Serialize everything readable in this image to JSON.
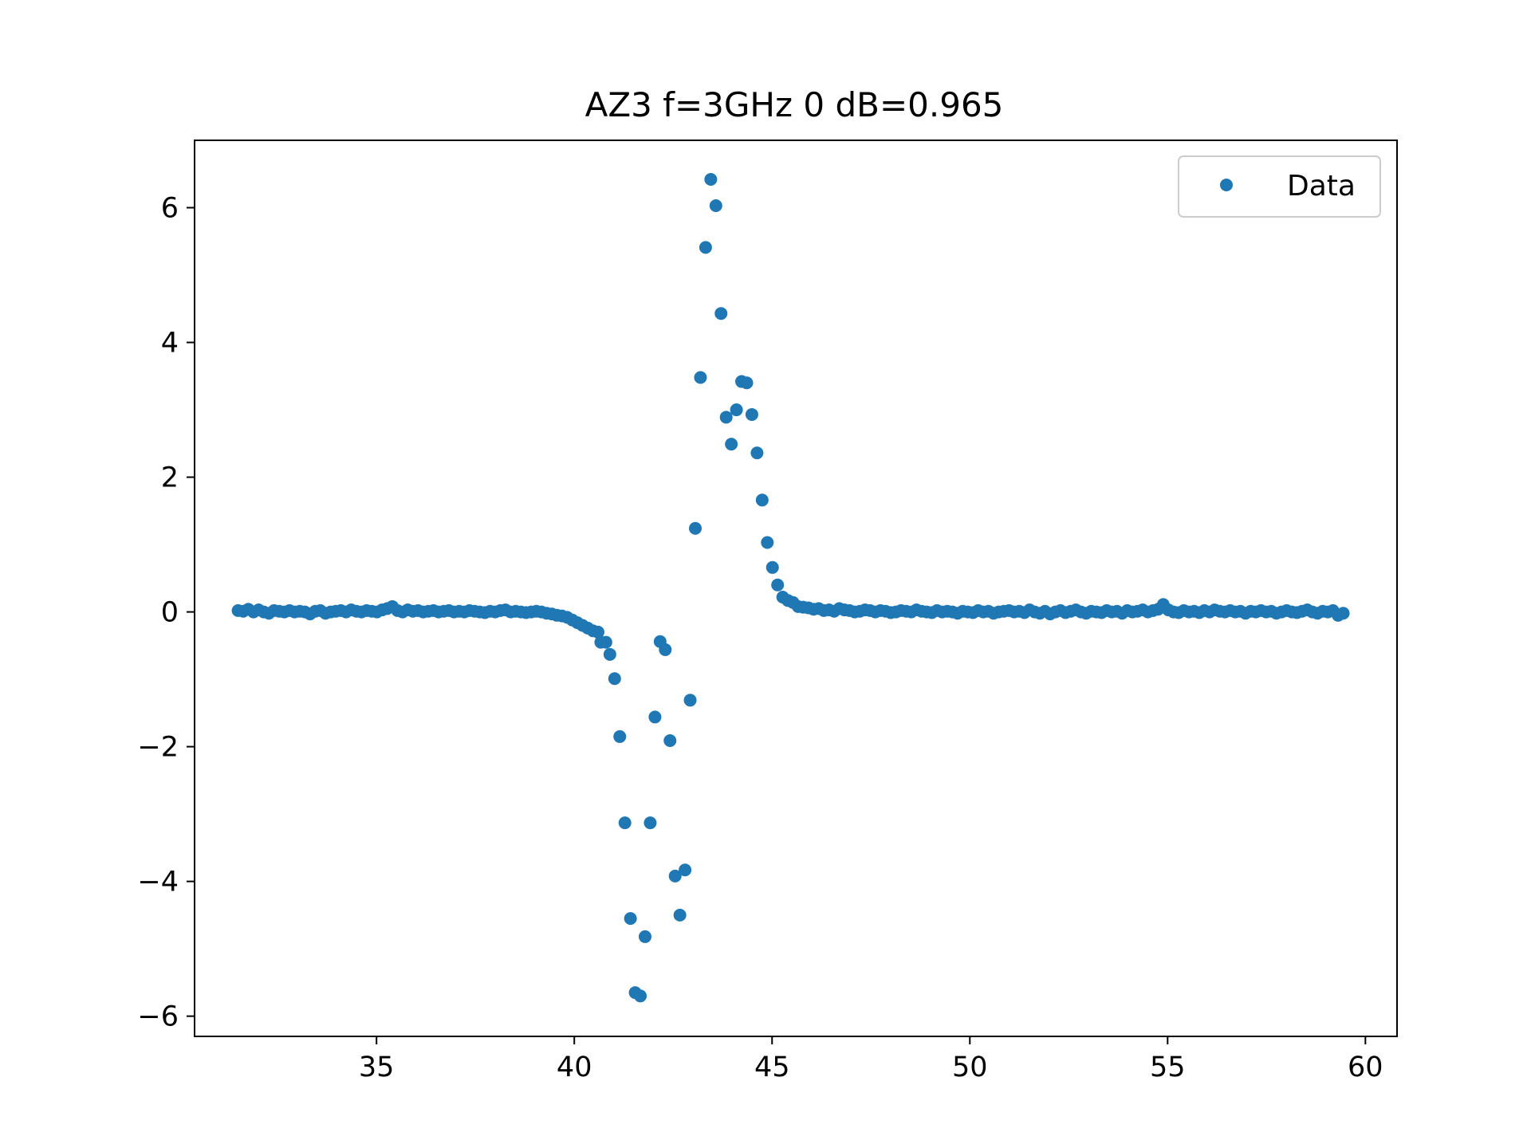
{
  "chart_data": {
    "type": "scatter",
    "title": "AZ3 f=3GHz 0 dB=0.965",
    "xlabel": "",
    "ylabel": "",
    "xlim": [
      30.4,
      60.8
    ],
    "ylim": [
      -6.3,
      7.0
    ],
    "xticks": [
      35,
      40,
      45,
      50,
      55,
      60
    ],
    "xtick_labels": [
      "35",
      "40",
      "45",
      "50",
      "55",
      "60"
    ],
    "yticks": [
      -6,
      -4,
      -2,
      0,
      2,
      4,
      6
    ],
    "ytick_labels": [
      "−6",
      "−4",
      "−2",
      "0",
      "2",
      "4",
      "6"
    ],
    "grid": false,
    "legend": {
      "position": "top-right",
      "entries": [
        "Data"
      ]
    },
    "colors": {
      "series": "#1f77b4",
      "axes": "#000000",
      "legend_border": "#cccccc"
    },
    "series": [
      {
        "name": "Data",
        "marker": "circle",
        "points": [
          [
            31.5,
            0.02
          ],
          [
            31.63,
            0.01
          ],
          [
            31.76,
            0.04
          ],
          [
            31.89,
            0.0
          ],
          [
            32.02,
            0.03
          ],
          [
            32.15,
            0.0
          ],
          [
            32.28,
            -0.02
          ],
          [
            32.41,
            0.02
          ],
          [
            32.54,
            0.01
          ],
          [
            32.67,
            0.0
          ],
          [
            32.8,
            0.02
          ],
          [
            32.93,
            0.0
          ],
          [
            33.06,
            0.01
          ],
          [
            33.19,
            0.0
          ],
          [
            33.32,
            -0.03
          ],
          [
            33.45,
            0.01
          ],
          [
            33.58,
            0.02
          ],
          [
            33.71,
            -0.02
          ],
          [
            33.84,
            0.0
          ],
          [
            33.97,
            0.01
          ],
          [
            34.1,
            0.02
          ],
          [
            34.23,
            0.0
          ],
          [
            34.36,
            0.03
          ],
          [
            34.49,
            0.01
          ],
          [
            34.62,
            0.0
          ],
          [
            34.75,
            0.02
          ],
          [
            34.88,
            0.01
          ],
          [
            35.01,
            0.0
          ],
          [
            35.14,
            0.03
          ],
          [
            35.27,
            0.05
          ],
          [
            35.4,
            0.08
          ],
          [
            35.53,
            0.02
          ],
          [
            35.66,
            0.0
          ],
          [
            35.79,
            0.03
          ],
          [
            35.92,
            0.01
          ],
          [
            36.05,
            0.02
          ],
          [
            36.18,
            0.0
          ],
          [
            36.31,
            0.01
          ],
          [
            36.44,
            0.02
          ],
          [
            36.57,
            0.0
          ],
          [
            36.7,
            0.01
          ],
          [
            36.83,
            0.02
          ],
          [
            36.96,
            0.0
          ],
          [
            37.09,
            0.01
          ],
          [
            37.22,
            0.0
          ],
          [
            37.35,
            0.02
          ],
          [
            37.48,
            0.01
          ],
          [
            37.61,
            0.0
          ],
          [
            37.74,
            -0.01
          ],
          [
            37.87,
            0.01
          ],
          [
            38.0,
            0.0
          ],
          [
            38.13,
            0.02
          ],
          [
            38.26,
            0.03
          ],
          [
            38.39,
            0.0
          ],
          [
            38.52,
            0.01
          ],
          [
            38.65,
            0.0
          ],
          [
            38.78,
            -0.01
          ],
          [
            38.91,
            0.0
          ],
          [
            39.04,
            0.01
          ],
          [
            39.17,
            0.0
          ],
          [
            39.3,
            -0.02
          ],
          [
            39.43,
            -0.03
          ],
          [
            39.56,
            -0.05
          ],
          [
            39.69,
            -0.06
          ],
          [
            39.82,
            -0.08
          ],
          [
            39.95,
            -0.12
          ],
          [
            40.08,
            -0.16
          ],
          [
            40.21,
            -0.2
          ],
          [
            40.34,
            -0.24
          ],
          [
            40.47,
            -0.28
          ],
          [
            40.6,
            -0.3
          ],
          [
            40.67,
            -0.45
          ],
          [
            40.8,
            -0.45
          ],
          [
            40.9,
            -0.63
          ],
          [
            41.02,
            -0.99
          ],
          [
            41.15,
            -1.85
          ],
          [
            41.28,
            -3.13
          ],
          [
            41.42,
            -4.55
          ],
          [
            41.54,
            -5.65
          ],
          [
            41.67,
            -5.7
          ],
          [
            41.79,
            -4.82
          ],
          [
            41.92,
            -3.13
          ],
          [
            42.04,
            -1.56
          ],
          [
            42.17,
            -0.44
          ],
          [
            42.3,
            -0.56
          ],
          [
            42.42,
            -1.91
          ],
          [
            42.55,
            -3.92
          ],
          [
            42.67,
            -4.5
          ],
          [
            42.8,
            -3.83
          ],
          [
            42.93,
            -1.31
          ],
          [
            43.06,
            1.24
          ],
          [
            43.19,
            3.48
          ],
          [
            43.32,
            5.41
          ],
          [
            43.45,
            6.42
          ],
          [
            43.58,
            6.03
          ],
          [
            43.71,
            4.43
          ],
          [
            43.84,
            2.89
          ],
          [
            43.97,
            2.49
          ],
          [
            44.1,
            3.0
          ],
          [
            44.23,
            3.42
          ],
          [
            44.36,
            3.4
          ],
          [
            44.49,
            2.93
          ],
          [
            44.62,
            2.36
          ],
          [
            44.75,
            1.66
          ],
          [
            44.88,
            1.03
          ],
          [
            45.01,
            0.66
          ],
          [
            45.14,
            0.4
          ],
          [
            45.27,
            0.22
          ],
          [
            45.4,
            0.17
          ],
          [
            45.53,
            0.14
          ],
          [
            45.66,
            0.08
          ],
          [
            45.79,
            0.07
          ],
          [
            45.92,
            0.06
          ],
          [
            46.05,
            0.04
          ],
          [
            46.18,
            0.05
          ],
          [
            46.31,
            0.02
          ],
          [
            46.44,
            0.03
          ],
          [
            46.57,
            0.01
          ],
          [
            46.7,
            0.05
          ],
          [
            46.83,
            0.03
          ],
          [
            46.96,
            0.02
          ],
          [
            47.09,
            0.0
          ],
          [
            47.22,
            0.01
          ],
          [
            47.35,
            0.03
          ],
          [
            47.48,
            0.02
          ],
          [
            47.61,
            0.0
          ],
          [
            47.74,
            0.02
          ],
          [
            47.87,
            0.01
          ],
          [
            48.0,
            -0.01
          ],
          [
            48.13,
            0.0
          ],
          [
            48.26,
            0.02
          ],
          [
            48.39,
            0.01
          ],
          [
            48.52,
            0.0
          ],
          [
            48.65,
            0.03
          ],
          [
            48.78,
            0.01
          ],
          [
            48.91,
            0.0
          ],
          [
            49.04,
            -0.01
          ],
          [
            49.17,
            0.02
          ],
          [
            49.3,
            0.0
          ],
          [
            49.43,
            0.01
          ],
          [
            49.56,
            0.0
          ],
          [
            49.69,
            -0.02
          ],
          [
            49.82,
            0.01
          ],
          [
            49.95,
            0.0
          ],
          [
            50.08,
            -0.01
          ],
          [
            50.21,
            0.02
          ],
          [
            50.34,
            0.0
          ],
          [
            50.47,
            0.01
          ],
          [
            50.6,
            -0.02
          ],
          [
            50.73,
            0.0
          ],
          [
            50.86,
            0.01
          ],
          [
            50.99,
            0.02
          ],
          [
            51.12,
            0.0
          ],
          [
            51.25,
            0.01
          ],
          [
            51.38,
            -0.01
          ],
          [
            51.51,
            0.03
          ],
          [
            51.64,
            0.0
          ],
          [
            51.77,
            -0.02
          ],
          [
            51.9,
            0.01
          ],
          [
            52.03,
            -0.03
          ],
          [
            52.16,
            0.0
          ],
          [
            52.29,
            0.02
          ],
          [
            52.42,
            -0.01
          ],
          [
            52.55,
            0.01
          ],
          [
            52.68,
            0.03
          ],
          [
            52.81,
            0.0
          ],
          [
            52.94,
            -0.02
          ],
          [
            53.07,
            0.01
          ],
          [
            53.2,
            0.0
          ],
          [
            53.33,
            -0.01
          ],
          [
            53.46,
            0.02
          ],
          [
            53.59,
            0.0
          ],
          [
            53.72,
            0.01
          ],
          [
            53.85,
            -0.02
          ],
          [
            53.98,
            0.02
          ],
          [
            54.11,
            0.0
          ],
          [
            54.24,
            0.01
          ],
          [
            54.37,
            0.03
          ],
          [
            54.5,
            0.0
          ],
          [
            54.63,
            0.02
          ],
          [
            54.76,
            0.04
          ],
          [
            54.89,
            0.11
          ],
          [
            55.02,
            0.03
          ],
          [
            55.15,
            0.0
          ],
          [
            55.28,
            -0.01
          ],
          [
            55.41,
            0.02
          ],
          [
            55.54,
            0.0
          ],
          [
            55.67,
            0.01
          ],
          [
            55.8,
            -0.01
          ],
          [
            55.93,
            0.02
          ],
          [
            56.06,
            0.0
          ],
          [
            56.19,
            0.03
          ],
          [
            56.32,
            0.01
          ],
          [
            56.45,
            0.0
          ],
          [
            56.58,
            0.02
          ],
          [
            56.71,
            0.0
          ],
          [
            56.84,
            0.01
          ],
          [
            56.97,
            -0.02
          ],
          [
            57.1,
            0.01
          ],
          [
            57.23,
            0.0
          ],
          [
            57.36,
            0.02
          ],
          [
            57.49,
            0.0
          ],
          [
            57.62,
            0.01
          ],
          [
            57.75,
            -0.02
          ],
          [
            57.88,
            0.0
          ],
          [
            58.01,
            0.02
          ],
          [
            58.14,
            0.0
          ],
          [
            58.27,
            -0.01
          ],
          [
            58.4,
            0.01
          ],
          [
            58.53,
            0.03
          ],
          [
            58.66,
            0.0
          ],
          [
            58.79,
            -0.02
          ],
          [
            58.92,
            0.01
          ],
          [
            59.05,
            0.0
          ],
          [
            59.18,
            0.02
          ],
          [
            59.31,
            -0.05
          ],
          [
            59.44,
            -0.02
          ]
        ]
      }
    ]
  }
}
